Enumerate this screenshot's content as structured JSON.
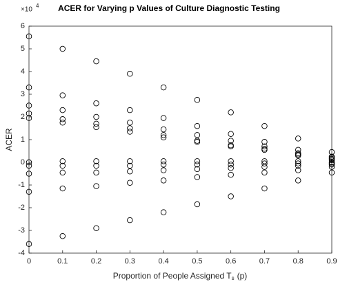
{
  "chart_data": {
    "type": "scatter",
    "title": "ACER for Varying p Values of Culture Diagnostic Testing",
    "y_exponent_base": "×10",
    "y_exponent": "4",
    "xlabel": "Proportion of People Assigned T",
    "xlabel_subscript": "s",
    "xlabel_suffix": "(p)",
    "ylabel": "ACER",
    "xlim": [
      0,
      0.9
    ],
    "ylim": [
      -4,
      6
    ],
    "xticks": [
      0,
      0.1,
      0.2,
      0.3,
      0.4,
      0.5,
      0.6,
      0.7,
      0.8,
      0.9
    ],
    "yticks": [
      -4,
      -3,
      -2,
      -1,
      0,
      1,
      2,
      3,
      4,
      5,
      6
    ],
    "grid": false,
    "series": [
      {
        "color": "#000000",
        "x": [
          0,
          0,
          0,
          0,
          0,
          0,
          0,
          0,
          0,
          0,
          0.1,
          0.1,
          0.1,
          0.1,
          0.1,
          0.1,
          0.1,
          0.1,
          0.1,
          0.1,
          0.2,
          0.2,
          0.2,
          0.2,
          0.2,
          0.2,
          0.2,
          0.2,
          0.2,
          0.2,
          0.3,
          0.3,
          0.3,
          0.3,
          0.3,
          0.3,
          0.3,
          0.3,
          0.3,
          0.3,
          0.4,
          0.4,
          0.4,
          0.4,
          0.4,
          0.4,
          0.4,
          0.4,
          0.4,
          0.4,
          0.5,
          0.5,
          0.5,
          0.5,
          0.5,
          0.5,
          0.5,
          0.5,
          0.5,
          0.5,
          0.6,
          0.6,
          0.6,
          0.6,
          0.6,
          0.6,
          0.6,
          0.6,
          0.6,
          0.6,
          0.7,
          0.7,
          0.7,
          0.7,
          0.7,
          0.7,
          0.7,
          0.7,
          0.7,
          0.7,
          0.8,
          0.8,
          0.8,
          0.8,
          0.8,
          0.8,
          0.8,
          0.8,
          0.8,
          0.8,
          0.9,
          0.9,
          0.9,
          0.9,
          0.9,
          0.9,
          0.9,
          0.9,
          0.9,
          0.9
        ],
        "values": [
          5.55,
          3.3,
          2.5,
          2.15,
          1.95,
          0.0,
          -0.15,
          -0.5,
          -1.3,
          -3.6,
          5.0,
          2.95,
          2.3,
          1.9,
          1.75,
          0.05,
          -0.15,
          -0.45,
          -1.15,
          -3.25,
          4.45,
          2.6,
          2.0,
          1.7,
          1.55,
          0.05,
          -0.15,
          -0.45,
          -1.05,
          -2.9,
          3.9,
          2.3,
          1.75,
          1.5,
          1.35,
          0.05,
          -0.15,
          -0.4,
          -0.9,
          -2.55,
          3.3,
          1.95,
          1.45,
          1.2,
          1.1,
          0.05,
          -0.1,
          -0.35,
          -0.8,
          -2.2,
          2.75,
          1.6,
          1.2,
          0.95,
          0.9,
          0.05,
          -0.1,
          -0.3,
          -0.65,
          -1.85,
          2.2,
          1.25,
          0.95,
          0.75,
          0.7,
          0.05,
          -0.1,
          -0.25,
          -0.55,
          -1.5,
          1.6,
          0.9,
          0.7,
          0.6,
          0.55,
          0.05,
          -0.05,
          -0.2,
          -0.45,
          -1.15,
          1.05,
          0.55,
          0.4,
          0.35,
          0.3,
          0.05,
          -0.05,
          -0.15,
          -0.35,
          -0.8,
          0.45,
          0.25,
          0.2,
          0.15,
          0.1,
          0.0,
          -0.05,
          -0.1,
          -0.2,
          -0.45
        ]
      }
    ]
  }
}
